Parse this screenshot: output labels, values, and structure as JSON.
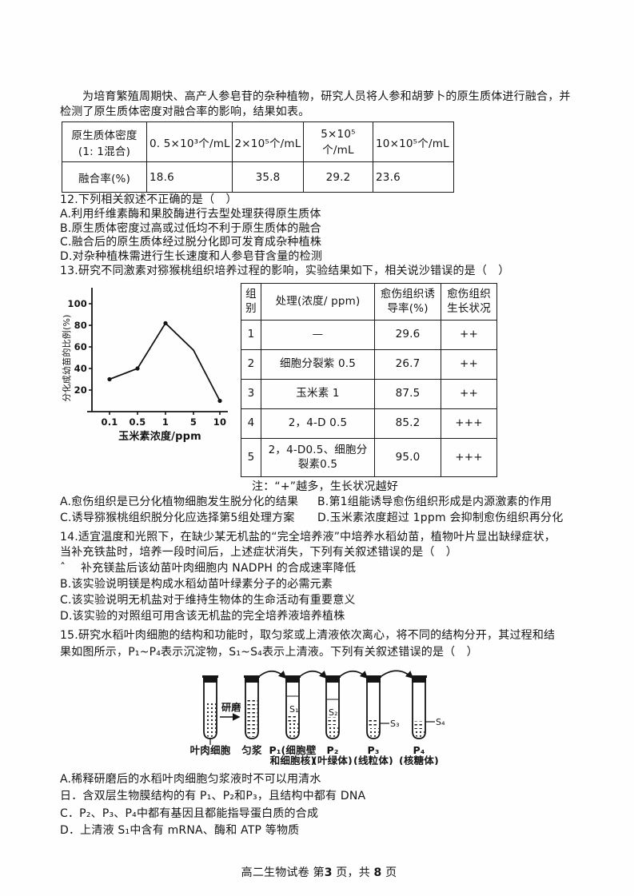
{
  "intro": {
    "line1": "为培育繁殖周期快、高产人参皂苷的杂种植物，研究人员将人参和胡萝卜的原生质体进行融合，并",
    "line2": "检测了原生质体密度对融合率的影响，结果如表。"
  },
  "table1": {
    "header_line1": "原生质体密度",
    "header_line2": "(1: 1混合)",
    "density_cols": [
      "0. 5×10³个/mL",
      "2×10⁵个/mL",
      "5×10⁵个/mL",
      "10×10⁵个/mL"
    ],
    "row_label": "融合率(%)",
    "values": [
      "18.6",
      "35.8",
      "29.2",
      "23.6"
    ]
  },
  "q12": {
    "stem": "12.下列相关叙述不正确的是（　）",
    "options": [
      "A.利用纤维素酶和果胶酶进行去型处理获得原生质体",
      "B.原生质体密度过高或过低均不利于原生质体的融合",
      "C.融合后的原生质体经过脱分化即可发育成杂种植株",
      "D.对杂种植株需进行生长速度和人参皂苷含量的检测"
    ]
  },
  "q13": {
    "stem": "13.研究不同激素对猕猴桃组织培养过程的影响，实验结果如下，相关说沙错误的是（　）",
    "table": {
      "headers": [
        "组别",
        "处理(浓度/ ppm)",
        "愈伤组织诱导率(%)",
        "愈伤组织生长状况"
      ],
      "rows": [
        [
          "1",
          "—",
          "29.6",
          "++"
        ],
        [
          "2",
          "细胞分裂紫 0.5",
          "26.7",
          "++"
        ],
        [
          "3",
          "玉米素 1",
          "87.5",
          "++"
        ],
        [
          "4",
          "2，4-D 0.5",
          "85.2",
          "+++"
        ],
        [
          "5",
          "2，4-D0.5、细胞分裂素0.5",
          "95.0",
          "+++"
        ]
      ]
    },
    "note": "注：“+”越多，生长状况越好",
    "options": [
      "A.愈伤组织是已分化植物细胞发生脱分化的结果",
      "B.第1组能诱导愈伤组织形成是内源激素的作用",
      "C.诱导猕猴桃组织脱分化应选择第5组处理方案",
      "D.玉米素浓度超过 1ppm 会抑制愈伤组织再分化"
    ]
  },
  "chart_data": {
    "type": "line",
    "x": [
      0.1,
      0.5,
      1,
      5,
      10
    ],
    "x_tick_labels": [
      "0.1",
      "0.5",
      "1",
      "5",
      "10"
    ],
    "values": [
      30,
      40,
      82,
      57,
      10
    ],
    "markers": [
      true,
      true,
      true,
      false,
      true
    ],
    "title": "",
    "xlabel": "玉米素浓度/ppm",
    "ylabel": "分化成幼苗的比例(%)",
    "ylim": [
      0,
      100
    ],
    "yticks": [
      20,
      40,
      60,
      80,
      100
    ],
    "grid": false,
    "legend": "none"
  },
  "q14": {
    "stem1": "14.适宜温度和光照下，在缺少某无机盐的“完全培养液”中培养水稻幼苗，植物叶片显出缺绿症状，",
    "stem2": "当补充铁盐时，培养一段时间后，上述症状消失，下列有关叙述错误的是（　）",
    "options": [
      "ˆ　 补充镁盐后该幼苗叶肉细胞内 NADPH 的合成速率降低",
      "B.该实验说明镁是构成水稻幼苗叶绿素分子的必需元素",
      "C.该实验说明无机盐对于维持生物体的生命活动有重要意义",
      "D.该实验的对照组可用含该无机盐的完全培养液培养植株"
    ]
  },
  "q15": {
    "stem1": "15.研究水稻叶肉细胞的结构和功能时，取匀浆或上清液依次离心，将不同的结构分开，其过程和结",
    "stem2": "果如图所示，P₁~P₄表示沉淀物，S₁~S₄表示上清液。下列有关叙述错误的是（　）",
    "diagram": {
      "grind_label": "研磨",
      "labels_line1": [
        "叶肉细胞",
        "匀浆",
        "P₁(细胞壁",
        "P₂",
        "P₃",
        "P₄"
      ],
      "labels_line2": [
        "",
        "",
        "和细胞核)",
        "(叶绿体)",
        "(线粒体)",
        "(核糖体)"
      ],
      "s_labels": [
        "S₁",
        "S₂",
        "S₃",
        "S₄"
      ]
    },
    "options": [
      "A.稀释研磨后的水稻叶肉细胞匀浆液时不可以用清水",
      "日．含双层生物膜结构的有 P₁、P₂和P₃，且结构中都有 DNA",
      "C．P₂、P₃、P₄中都有基因且都能指导蛋白质的合成",
      "D．上清液 S₁中含有 mRNA、酶和 ATP 等物质"
    ]
  },
  "footer": {
    "part1": "高二生物试卷 第",
    "page": "3",
    "part2": " 页，共 ",
    "total": "8",
    "part3": " 页"
  }
}
